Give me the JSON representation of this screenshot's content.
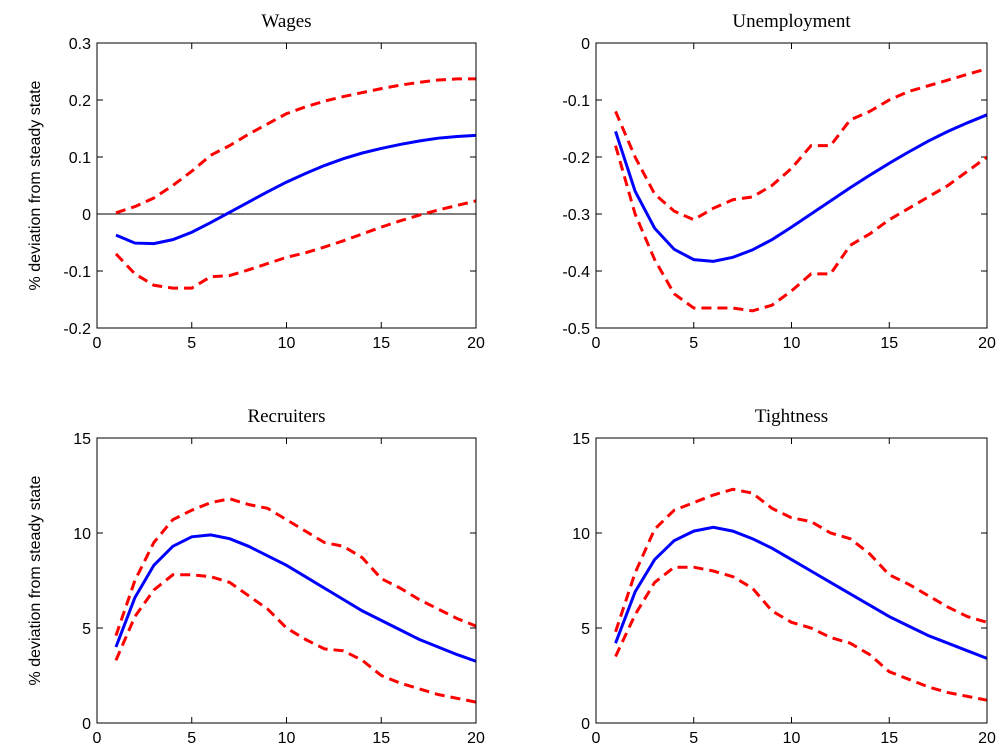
{
  "chart_data": [
    {
      "type": "line",
      "title": "Wages",
      "ylabel": "% deviation from steady state",
      "x": [
        1,
        2,
        3,
        4,
        5,
        6,
        7,
        8,
        9,
        10,
        11,
        12,
        13,
        14,
        15,
        16,
        17,
        18,
        19,
        20
      ],
      "xlim": [
        0,
        20
      ],
      "xticks": [
        0,
        5,
        10,
        15,
        20
      ],
      "ylim": [
        -0.2,
        0.3
      ],
      "yticks": [
        -0.2,
        -0.1,
        0,
        0.1,
        0.2,
        0.3
      ],
      "zero_line": true,
      "series": [
        {
          "color": "#0000ff",
          "style": "solid",
          "values": [
            -0.037,
            -0.051,
            -0.052,
            -0.045,
            -0.032,
            -0.015,
            0.003,
            0.021,
            0.039,
            0.056,
            0.071,
            0.085,
            0.097,
            0.107,
            0.115,
            0.122,
            0.128,
            0.133,
            0.136,
            0.138
          ]
        },
        {
          "color": "#ff0000",
          "style": "dashed",
          "values": [
            0.002,
            0.013,
            0.028,
            0.05,
            0.075,
            0.103,
            0.12,
            0.14,
            0.158,
            0.176,
            0.188,
            0.198,
            0.206,
            0.213,
            0.22,
            0.226,
            0.231,
            0.235,
            0.237,
            0.237
          ]
        },
        {
          "color": "#ff0000",
          "style": "dashed",
          "values": [
            -0.07,
            -0.105,
            -0.125,
            -0.13,
            -0.13,
            -0.11,
            -0.108,
            -0.098,
            -0.087,
            -0.076,
            -0.068,
            -0.058,
            -0.047,
            -0.035,
            -0.023,
            -0.012,
            -0.002,
            0.007,
            0.015,
            0.023
          ]
        }
      ]
    },
    {
      "type": "line",
      "title": "Unemployment",
      "x": [
        1,
        2,
        3,
        4,
        5,
        6,
        7,
        8,
        9,
        10,
        11,
        12,
        13,
        14,
        15,
        16,
        17,
        18,
        19,
        20
      ],
      "xlim": [
        0,
        20
      ],
      "xticks": [
        0,
        5,
        10,
        15,
        20
      ],
      "ylim": [
        -0.5,
        0
      ],
      "yticks": [
        -0.5,
        -0.4,
        -0.3,
        -0.2,
        -0.1,
        0
      ],
      "series": [
        {
          "color": "#0000ff",
          "style": "solid",
          "values": [
            -0.155,
            -0.26,
            -0.325,
            -0.362,
            -0.38,
            -0.383,
            -0.376,
            -0.363,
            -0.345,
            -0.323,
            -0.3,
            -0.277,
            -0.254,
            -0.232,
            -0.211,
            -0.191,
            -0.172,
            -0.155,
            -0.14,
            -0.126
          ]
        },
        {
          "color": "#ff0000",
          "style": "dashed",
          "values": [
            -0.12,
            -0.2,
            -0.265,
            -0.295,
            -0.31,
            -0.29,
            -0.275,
            -0.27,
            -0.25,
            -0.22,
            -0.18,
            -0.18,
            -0.135,
            -0.12,
            -0.1,
            -0.085,
            -0.075,
            -0.065,
            -0.055,
            -0.045
          ]
        },
        {
          "color": "#ff0000",
          "style": "dashed",
          "values": [
            -0.18,
            -0.3,
            -0.38,
            -0.44,
            -0.465,
            -0.465,
            -0.465,
            -0.47,
            -0.46,
            -0.435,
            -0.405,
            -0.405,
            -0.355,
            -0.335,
            -0.31,
            -0.29,
            -0.27,
            -0.25,
            -0.225,
            -0.2
          ]
        }
      ]
    },
    {
      "type": "line",
      "title": "Recruiters",
      "ylabel": "% deviation from steady state",
      "x": [
        1,
        2,
        3,
        4,
        5,
        6,
        7,
        8,
        9,
        10,
        11,
        12,
        13,
        14,
        15,
        16,
        17,
        18,
        19,
        20
      ],
      "xlim": [
        0,
        20
      ],
      "xticks": [
        0,
        5,
        10,
        15,
        20
      ],
      "ylim": [
        0,
        15
      ],
      "yticks": [
        0,
        5,
        10,
        15
      ],
      "series": [
        {
          "color": "#0000ff",
          "style": "solid",
          "values": [
            4.0,
            6.6,
            8.3,
            9.3,
            9.8,
            9.9,
            9.7,
            9.3,
            8.8,
            8.3,
            7.7,
            7.1,
            6.5,
            5.9,
            5.4,
            4.9,
            4.4,
            4.0,
            3.6,
            3.25
          ]
        },
        {
          "color": "#ff0000",
          "style": "dashed",
          "values": [
            4.6,
            7.5,
            9.5,
            10.7,
            11.2,
            11.6,
            11.8,
            11.5,
            11.3,
            10.7,
            10.1,
            9.5,
            9.3,
            8.7,
            7.6,
            7.1,
            6.5,
            6.0,
            5.5,
            5.1
          ]
        },
        {
          "color": "#ff0000",
          "style": "dashed",
          "values": [
            3.3,
            5.6,
            7.0,
            7.8,
            7.8,
            7.7,
            7.4,
            6.7,
            6.0,
            5.0,
            4.4,
            3.9,
            3.8,
            3.3,
            2.5,
            2.1,
            1.8,
            1.5,
            1.3,
            1.1
          ]
        }
      ]
    },
    {
      "type": "line",
      "title": "Tightness",
      "x": [
        1,
        2,
        3,
        4,
        5,
        6,
        7,
        8,
        9,
        10,
        11,
        12,
        13,
        14,
        15,
        16,
        17,
        18,
        19,
        20
      ],
      "xlim": [
        0,
        20
      ],
      "xticks": [
        0,
        5,
        10,
        15,
        20
      ],
      "ylim": [
        0,
        15
      ],
      "yticks": [
        0,
        5,
        10,
        15
      ],
      "series": [
        {
          "color": "#0000ff",
          "style": "solid",
          "values": [
            4.2,
            6.9,
            8.6,
            9.6,
            10.1,
            10.3,
            10.1,
            9.7,
            9.2,
            8.6,
            8.0,
            7.4,
            6.8,
            6.2,
            5.6,
            5.1,
            4.6,
            4.2,
            3.8,
            3.4
          ]
        },
        {
          "color": "#ff0000",
          "style": "dashed",
          "values": [
            4.8,
            7.9,
            10.2,
            11.2,
            11.6,
            12.0,
            12.3,
            12.1,
            11.3,
            10.8,
            10.6,
            10.0,
            9.7,
            8.9,
            7.8,
            7.3,
            6.7,
            6.1,
            5.6,
            5.3
          ]
        },
        {
          "color": "#ff0000",
          "style": "dashed",
          "values": [
            3.5,
            5.7,
            7.4,
            8.2,
            8.2,
            8.0,
            7.7,
            7.1,
            5.9,
            5.3,
            5.0,
            4.5,
            4.2,
            3.6,
            2.7,
            2.3,
            1.9,
            1.6,
            1.4,
            1.2
          ]
        }
      ]
    }
  ]
}
